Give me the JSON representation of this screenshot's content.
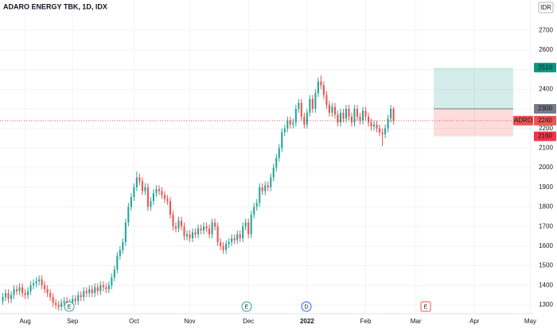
{
  "chart_data": {
    "type": "candlestick",
    "title": "ADARO ENERGY TBK, 1D, IDX",
    "currency": "IDR",
    "up_color": "#26a69a",
    "down_color": "#ef5350",
    "grid": true,
    "ylim": [
      1255,
      2855
    ],
    "yticks": [
      1300,
      1400,
      1500,
      1600,
      1700,
      1800,
      1900,
      2000,
      2100,
      2200,
      2300,
      2400,
      2500,
      2600,
      2700
    ],
    "xlim": [
      -1,
      190
    ],
    "xticks": [
      {
        "value": 8,
        "label": "Aug"
      },
      {
        "value": 25,
        "label": "Sep"
      },
      {
        "value": 47,
        "label": "Oct"
      },
      {
        "value": 67,
        "label": "Nov"
      },
      {
        "value": 88,
        "label": "Dec"
      },
      {
        "value": 109,
        "label": "2022"
      },
      {
        "value": 130,
        "label": "Feb"
      },
      {
        "value": 148,
        "label": "Mar"
      },
      {
        "value": 169,
        "label": "Apr"
      },
      {
        "value": 189,
        "label": "May"
      }
    ],
    "last_price": {
      "symbol": "ADRO",
      "value": 2240
    },
    "position": {
      "target": 2510,
      "entry": 2300,
      "stop": 2160
    },
    "events": [
      "E",
      "E",
      "D",
      "E"
    ],
    "ohlc": [
      [
        1320,
        1360,
        1300,
        1340
      ],
      [
        1340,
        1380,
        1320,
        1360
      ],
      [
        1360,
        1380,
        1310,
        1330
      ],
      [
        1330,
        1370,
        1310,
        1350
      ],
      [
        1350,
        1400,
        1330,
        1380
      ],
      [
        1380,
        1400,
        1350,
        1370
      ],
      [
        1370,
        1410,
        1350,
        1390
      ],
      [
        1390,
        1410,
        1340,
        1360
      ],
      [
        1360,
        1380,
        1330,
        1350
      ],
      [
        1350,
        1390,
        1330,
        1370
      ],
      [
        1370,
        1420,
        1350,
        1400
      ],
      [
        1400,
        1430,
        1380,
        1410
      ],
      [
        1410,
        1440,
        1390,
        1420
      ],
      [
        1420,
        1450,
        1400,
        1430
      ],
      [
        1430,
        1450,
        1380,
        1400
      ],
      [
        1400,
        1420,
        1360,
        1380
      ],
      [
        1380,
        1400,
        1340,
        1360
      ],
      [
        1360,
        1380,
        1320,
        1340
      ],
      [
        1340,
        1360,
        1290,
        1310
      ],
      [
        1310,
        1330,
        1280,
        1300
      ],
      [
        1300,
        1320,
        1270,
        1290
      ],
      [
        1290,
        1330,
        1270,
        1310
      ],
      [
        1310,
        1340,
        1290,
        1320
      ],
      [
        1320,
        1340,
        1280,
        1300
      ],
      [
        1300,
        1330,
        1280,
        1310
      ],
      [
        1310,
        1350,
        1290,
        1330
      ],
      [
        1330,
        1350,
        1300,
        1320
      ],
      [
        1320,
        1370,
        1300,
        1350
      ],
      [
        1350,
        1370,
        1320,
        1340
      ],
      [
        1340,
        1390,
        1320,
        1370
      ],
      [
        1370,
        1390,
        1340,
        1360
      ],
      [
        1360,
        1400,
        1340,
        1380
      ],
      [
        1380,
        1400,
        1340,
        1360
      ],
      [
        1360,
        1410,
        1340,
        1390
      ],
      [
        1390,
        1410,
        1350,
        1370
      ],
      [
        1370,
        1420,
        1350,
        1400
      ],
      [
        1400,
        1420,
        1370,
        1390
      ],
      [
        1390,
        1410,
        1360,
        1380
      ],
      [
        1380,
        1420,
        1360,
        1400
      ],
      [
        1400,
        1460,
        1380,
        1440
      ],
      [
        1440,
        1500,
        1420,
        1480
      ],
      [
        1480,
        1570,
        1460,
        1550
      ],
      [
        1550,
        1600,
        1530,
        1580
      ],
      [
        1580,
        1640,
        1560,
        1620
      ],
      [
        1620,
        1740,
        1600,
        1720
      ],
      [
        1720,
        1820,
        1700,
        1800
      ],
      [
        1800,
        1870,
        1780,
        1850
      ],
      [
        1850,
        1920,
        1830,
        1900
      ],
      [
        1900,
        1980,
        1880,
        1950
      ],
      [
        1950,
        1970,
        1910,
        1930
      ],
      [
        1930,
        1950,
        1860,
        1880
      ],
      [
        1880,
        1920,
        1860,
        1900
      ],
      [
        1900,
        1920,
        1780,
        1800
      ],
      [
        1800,
        1850,
        1780,
        1830
      ],
      [
        1830,
        1890,
        1810,
        1870
      ],
      [
        1870,
        1910,
        1850,
        1890
      ],
      [
        1890,
        1910,
        1860,
        1880
      ],
      [
        1880,
        1900,
        1840,
        1860
      ],
      [
        1860,
        1880,
        1820,
        1840
      ],
      [
        1840,
        1860,
        1810,
        1830
      ],
      [
        1830,
        1850,
        1740,
        1760
      ],
      [
        1760,
        1780,
        1680,
        1700
      ],
      [
        1700,
        1720,
        1670,
        1690
      ],
      [
        1690,
        1750,
        1670,
        1730
      ],
      [
        1730,
        1750,
        1680,
        1700
      ],
      [
        1700,
        1720,
        1630,
        1650
      ],
      [
        1650,
        1680,
        1630,
        1660
      ],
      [
        1660,
        1680,
        1620,
        1640
      ],
      [
        1640,
        1690,
        1620,
        1670
      ],
      [
        1670,
        1690,
        1640,
        1660
      ],
      [
        1660,
        1710,
        1640,
        1690
      ],
      [
        1690,
        1710,
        1660,
        1680
      ],
      [
        1680,
        1720,
        1660,
        1700
      ],
      [
        1700,
        1720,
        1670,
        1690
      ],
      [
        1690,
        1710,
        1640,
        1660
      ],
      [
        1660,
        1740,
        1640,
        1720
      ],
      [
        1720,
        1740,
        1680,
        1700
      ],
      [
        1700,
        1720,
        1600,
        1620
      ],
      [
        1620,
        1640,
        1580,
        1600
      ],
      [
        1600,
        1620,
        1560,
        1580
      ],
      [
        1580,
        1630,
        1560,
        1610
      ],
      [
        1610,
        1640,
        1590,
        1620
      ],
      [
        1620,
        1660,
        1600,
        1640
      ],
      [
        1640,
        1660,
        1610,
        1630
      ],
      [
        1630,
        1680,
        1610,
        1660
      ],
      [
        1660,
        1680,
        1620,
        1640
      ],
      [
        1640,
        1720,
        1620,
        1700
      ],
      [
        1700,
        1740,
        1680,
        1720
      ],
      [
        1720,
        1740,
        1640,
        1660
      ],
      [
        1660,
        1780,
        1640,
        1760
      ],
      [
        1760,
        1820,
        1740,
        1800
      ],
      [
        1800,
        1840,
        1780,
        1820
      ],
      [
        1820,
        1920,
        1800,
        1900
      ],
      [
        1900,
        1920,
        1860,
        1880
      ],
      [
        1880,
        1930,
        1860,
        1910
      ],
      [
        1910,
        1930,
        1880,
        1900
      ],
      [
        1900,
        1970,
        1880,
        1950
      ],
      [
        1950,
        2020,
        1930,
        2000
      ],
      [
        2000,
        2070,
        1980,
        2050
      ],
      [
        2050,
        2120,
        2030,
        2100
      ],
      [
        2100,
        2200,
        2080,
        2180
      ],
      [
        2180,
        2220,
        2160,
        2200
      ],
      [
        2200,
        2260,
        2180,
        2240
      ],
      [
        2240,
        2260,
        2200,
        2220
      ],
      [
        2220,
        2250,
        2200,
        2230
      ],
      [
        2230,
        2320,
        2210,
        2300
      ],
      [
        2300,
        2350,
        2280,
        2330
      ],
      [
        2330,
        2350,
        2240,
        2260
      ],
      [
        2260,
        2280,
        2200,
        2220
      ],
      [
        2220,
        2300,
        2200,
        2280
      ],
      [
        2280,
        2370,
        2260,
        2350
      ],
      [
        2350,
        2370,
        2280,
        2300
      ],
      [
        2300,
        2400,
        2280,
        2380
      ],
      [
        2380,
        2460,
        2360,
        2440
      ],
      [
        2440,
        2470,
        2400,
        2420
      ],
      [
        2420,
        2440,
        2350,
        2370
      ],
      [
        2370,
        2390,
        2300,
        2320
      ],
      [
        2320,
        2340,
        2260,
        2280
      ],
      [
        2280,
        2330,
        2260,
        2310
      ],
      [
        2310,
        2330,
        2250,
        2270
      ],
      [
        2270,
        2290,
        2210,
        2230
      ],
      [
        2230,
        2300,
        2210,
        2280
      ],
      [
        2280,
        2300,
        2230,
        2250
      ],
      [
        2250,
        2320,
        2230,
        2300
      ],
      [
        2300,
        2320,
        2240,
        2260
      ],
      [
        2260,
        2280,
        2210,
        2230
      ],
      [
        2230,
        2320,
        2210,
        2300
      ],
      [
        2300,
        2320,
        2240,
        2260
      ],
      [
        2260,
        2280,
        2220,
        2240
      ],
      [
        2240,
        2310,
        2220,
        2290
      ],
      [
        2290,
        2310,
        2240,
        2260
      ],
      [
        2260,
        2280,
        2210,
        2230
      ],
      [
        2230,
        2250,
        2190,
        2210
      ],
      [
        2210,
        2240,
        2190,
        2220
      ],
      [
        2220,
        2240,
        2180,
        2200
      ],
      [
        2200,
        2220,
        2160,
        2180
      ],
      [
        2180,
        2200,
        2110,
        2170
      ],
      [
        2170,
        2220,
        2150,
        2200
      ],
      [
        2200,
        2270,
        2180,
        2250
      ],
      [
        2250,
        2320,
        2230,
        2300
      ],
      [
        2300,
        2310,
        2220,
        2240
      ]
    ]
  }
}
